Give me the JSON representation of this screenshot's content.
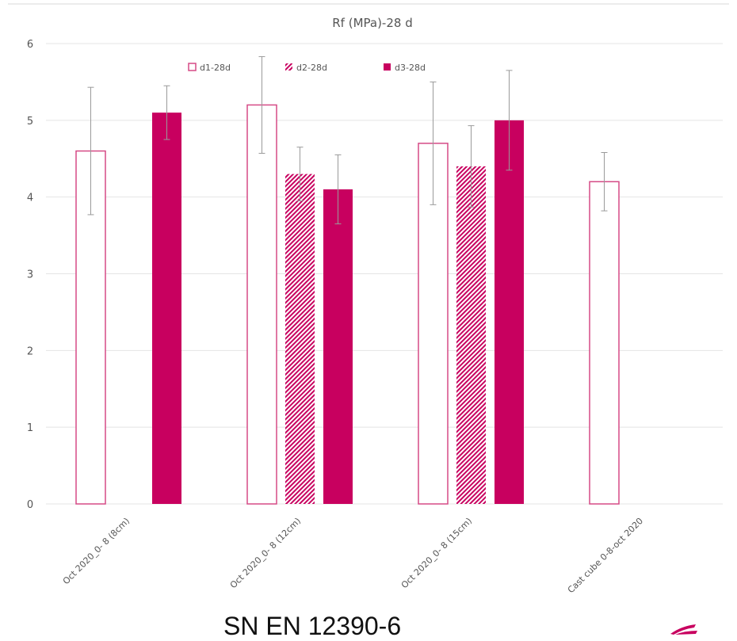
{
  "chart_data": {
    "type": "bar",
    "title": "Rf (MPa)-28 d",
    "xlabel": "",
    "ylabel": "",
    "ylim": [
      0,
      6
    ],
    "yticks": [
      "0",
      "1",
      "2",
      "3",
      "4",
      "5",
      "6"
    ],
    "grid": true,
    "legend_position": "top",
    "categories": [
      "Oct 2020_0- 8 (8cm)",
      "Oct 2020_0- 8 (12cm)",
      "Oct 2020_0- 8 (15cm)",
      "Cast cube 0-8-oct 2020"
    ],
    "series": [
      {
        "name": "d1-28d",
        "style": "outline",
        "values": [
          4.6,
          5.2,
          4.7,
          4.2
        ],
        "errors": [
          0.83,
          0.63,
          0.8,
          0.38
        ]
      },
      {
        "name": "d2-28d",
        "style": "hatched",
        "values": [
          null,
          4.3,
          4.4,
          null
        ],
        "errors": [
          null,
          0.35,
          0.53,
          null
        ]
      },
      {
        "name": "d3-28d",
        "style": "solid",
        "values": [
          5.1,
          4.1,
          5.0,
          null
        ],
        "errors": [
          0.35,
          0.45,
          0.65,
          null
        ]
      }
    ]
  },
  "footer": {
    "caption": "SN EN 12390-6"
  },
  "colors": {
    "accent": "#c8005f",
    "outline": "#d54a86",
    "grid": "#e4e4e4",
    "error_bar": "#9a9a9a",
    "text": "#555555"
  }
}
